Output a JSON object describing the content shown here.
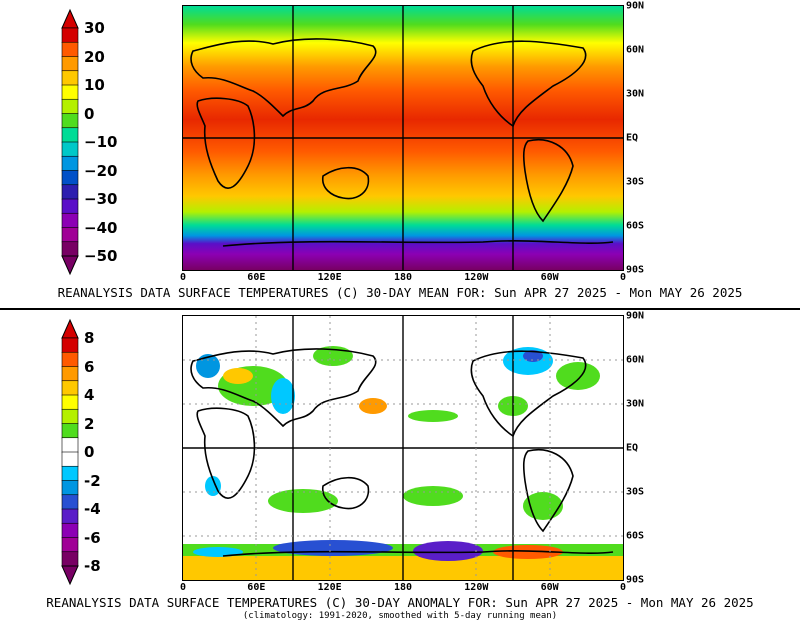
{
  "top_panel": {
    "caption": "REANALYSIS DATA SURFACE TEMPERATURES (C) 30-DAY MEAN FOR: Sun APR 27 2025 - Mon MAY 26 2025",
    "colorbar_labels": [
      "30",
      "20",
      "10",
      "0",
      "−10",
      "−20",
      "−30",
      "−40",
      "−50"
    ],
    "colorbar_colors": [
      "#d40000",
      "#ff5a00",
      "#ff9a00",
      "#ffc800",
      "#ffff00",
      "#b4f000",
      "#50dc1e",
      "#00dc96",
      "#00c8c8",
      "#0096e1",
      "#0050c8",
      "#2d1eaf",
      "#5a0fc8",
      "#8c00b4",
      "#a00096",
      "#780064"
    ]
  },
  "bottom_panel": {
    "caption": "REANALYSIS DATA SURFACE TEMPERATURES (C) 30-DAY ANOMALY FOR: Sun APR 27 2025 - Mon MAY 26 2025",
    "subcaption": "(climatology: 1991-2020, smoothed with 5-day running mean)",
    "colorbar_labels": [
      "8",
      "6",
      "4",
      "2",
      "0",
      "-2",
      "-4",
      "-6",
      "-8"
    ],
    "colorbar_colors": [
      "#d40000",
      "#ff5a00",
      "#ff9a00",
      "#ffc800",
      "#ffff00",
      "#b4f000",
      "#50dc1e",
      "#ffffff",
      "#ffffff",
      "#00c8ff",
      "#0096e1",
      "#2850d2",
      "#5a1ec8",
      "#8c00b4",
      "#a00096",
      "#780064"
    ]
  },
  "latitude_labels": [
    "90N",
    "60N",
    "30N",
    "EQ",
    "30S",
    "60S",
    "90S"
  ],
  "longitude_labels": [
    "0",
    "60E",
    "120E",
    "180",
    "120W",
    "60W",
    "0"
  ]
}
